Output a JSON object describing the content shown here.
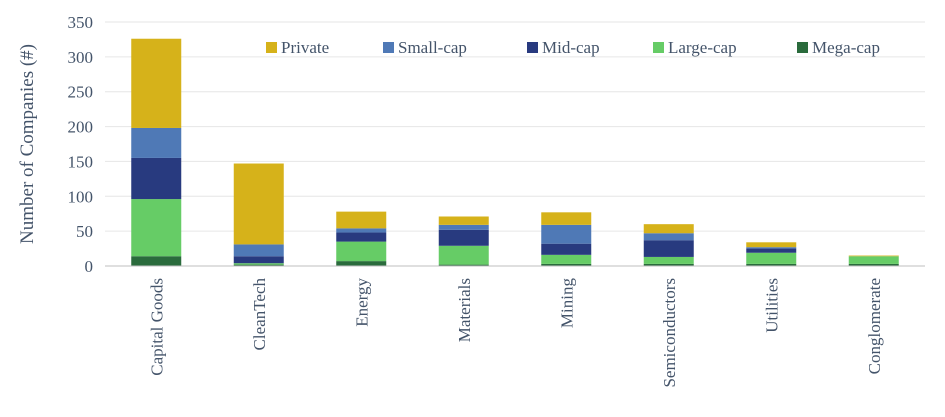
{
  "chart_data": {
    "type": "bar",
    "stacked": true,
    "title": "",
    "xlabel": "",
    "ylabel": "Number of Companies (#)",
    "ylim": [
      0,
      350
    ],
    "yticks": [
      0,
      50,
      100,
      150,
      200,
      250,
      300,
      350
    ],
    "grid": true,
    "legend_position": "top-right",
    "categories": [
      "Capital Goods",
      "CleanTech",
      "Energy",
      "Materials",
      "Mining",
      "Semiconductors",
      "Utilities",
      "Conglomerate"
    ],
    "series": [
      {
        "name": "Mega-cap",
        "color": "#2a6b3c",
        "values": [
          14,
          2,
          7,
          2,
          3,
          3,
          3,
          3
        ]
      },
      {
        "name": "Large-cap",
        "color": "#66cc66",
        "values": [
          82,
          2,
          28,
          27,
          13,
          10,
          16,
          11
        ]
      },
      {
        "name": "Mid-cap",
        "color": "#283a7f",
        "values": [
          59,
          10,
          13,
          23,
          16,
          24,
          6,
          0
        ]
      },
      {
        "name": "Small-cap",
        "color": "#4f79b6",
        "values": [
          43,
          17,
          6,
          7,
          27,
          10,
          2,
          0
        ]
      },
      {
        "name": "Private",
        "color": "#d6b21a",
        "values": [
          128,
          116,
          24,
          12,
          18,
          13,
          7,
          1
        ]
      }
    ],
    "legend_order": [
      "Private",
      "Small-cap",
      "Mid-cap",
      "Large-cap",
      "Mega-cap"
    ]
  }
}
